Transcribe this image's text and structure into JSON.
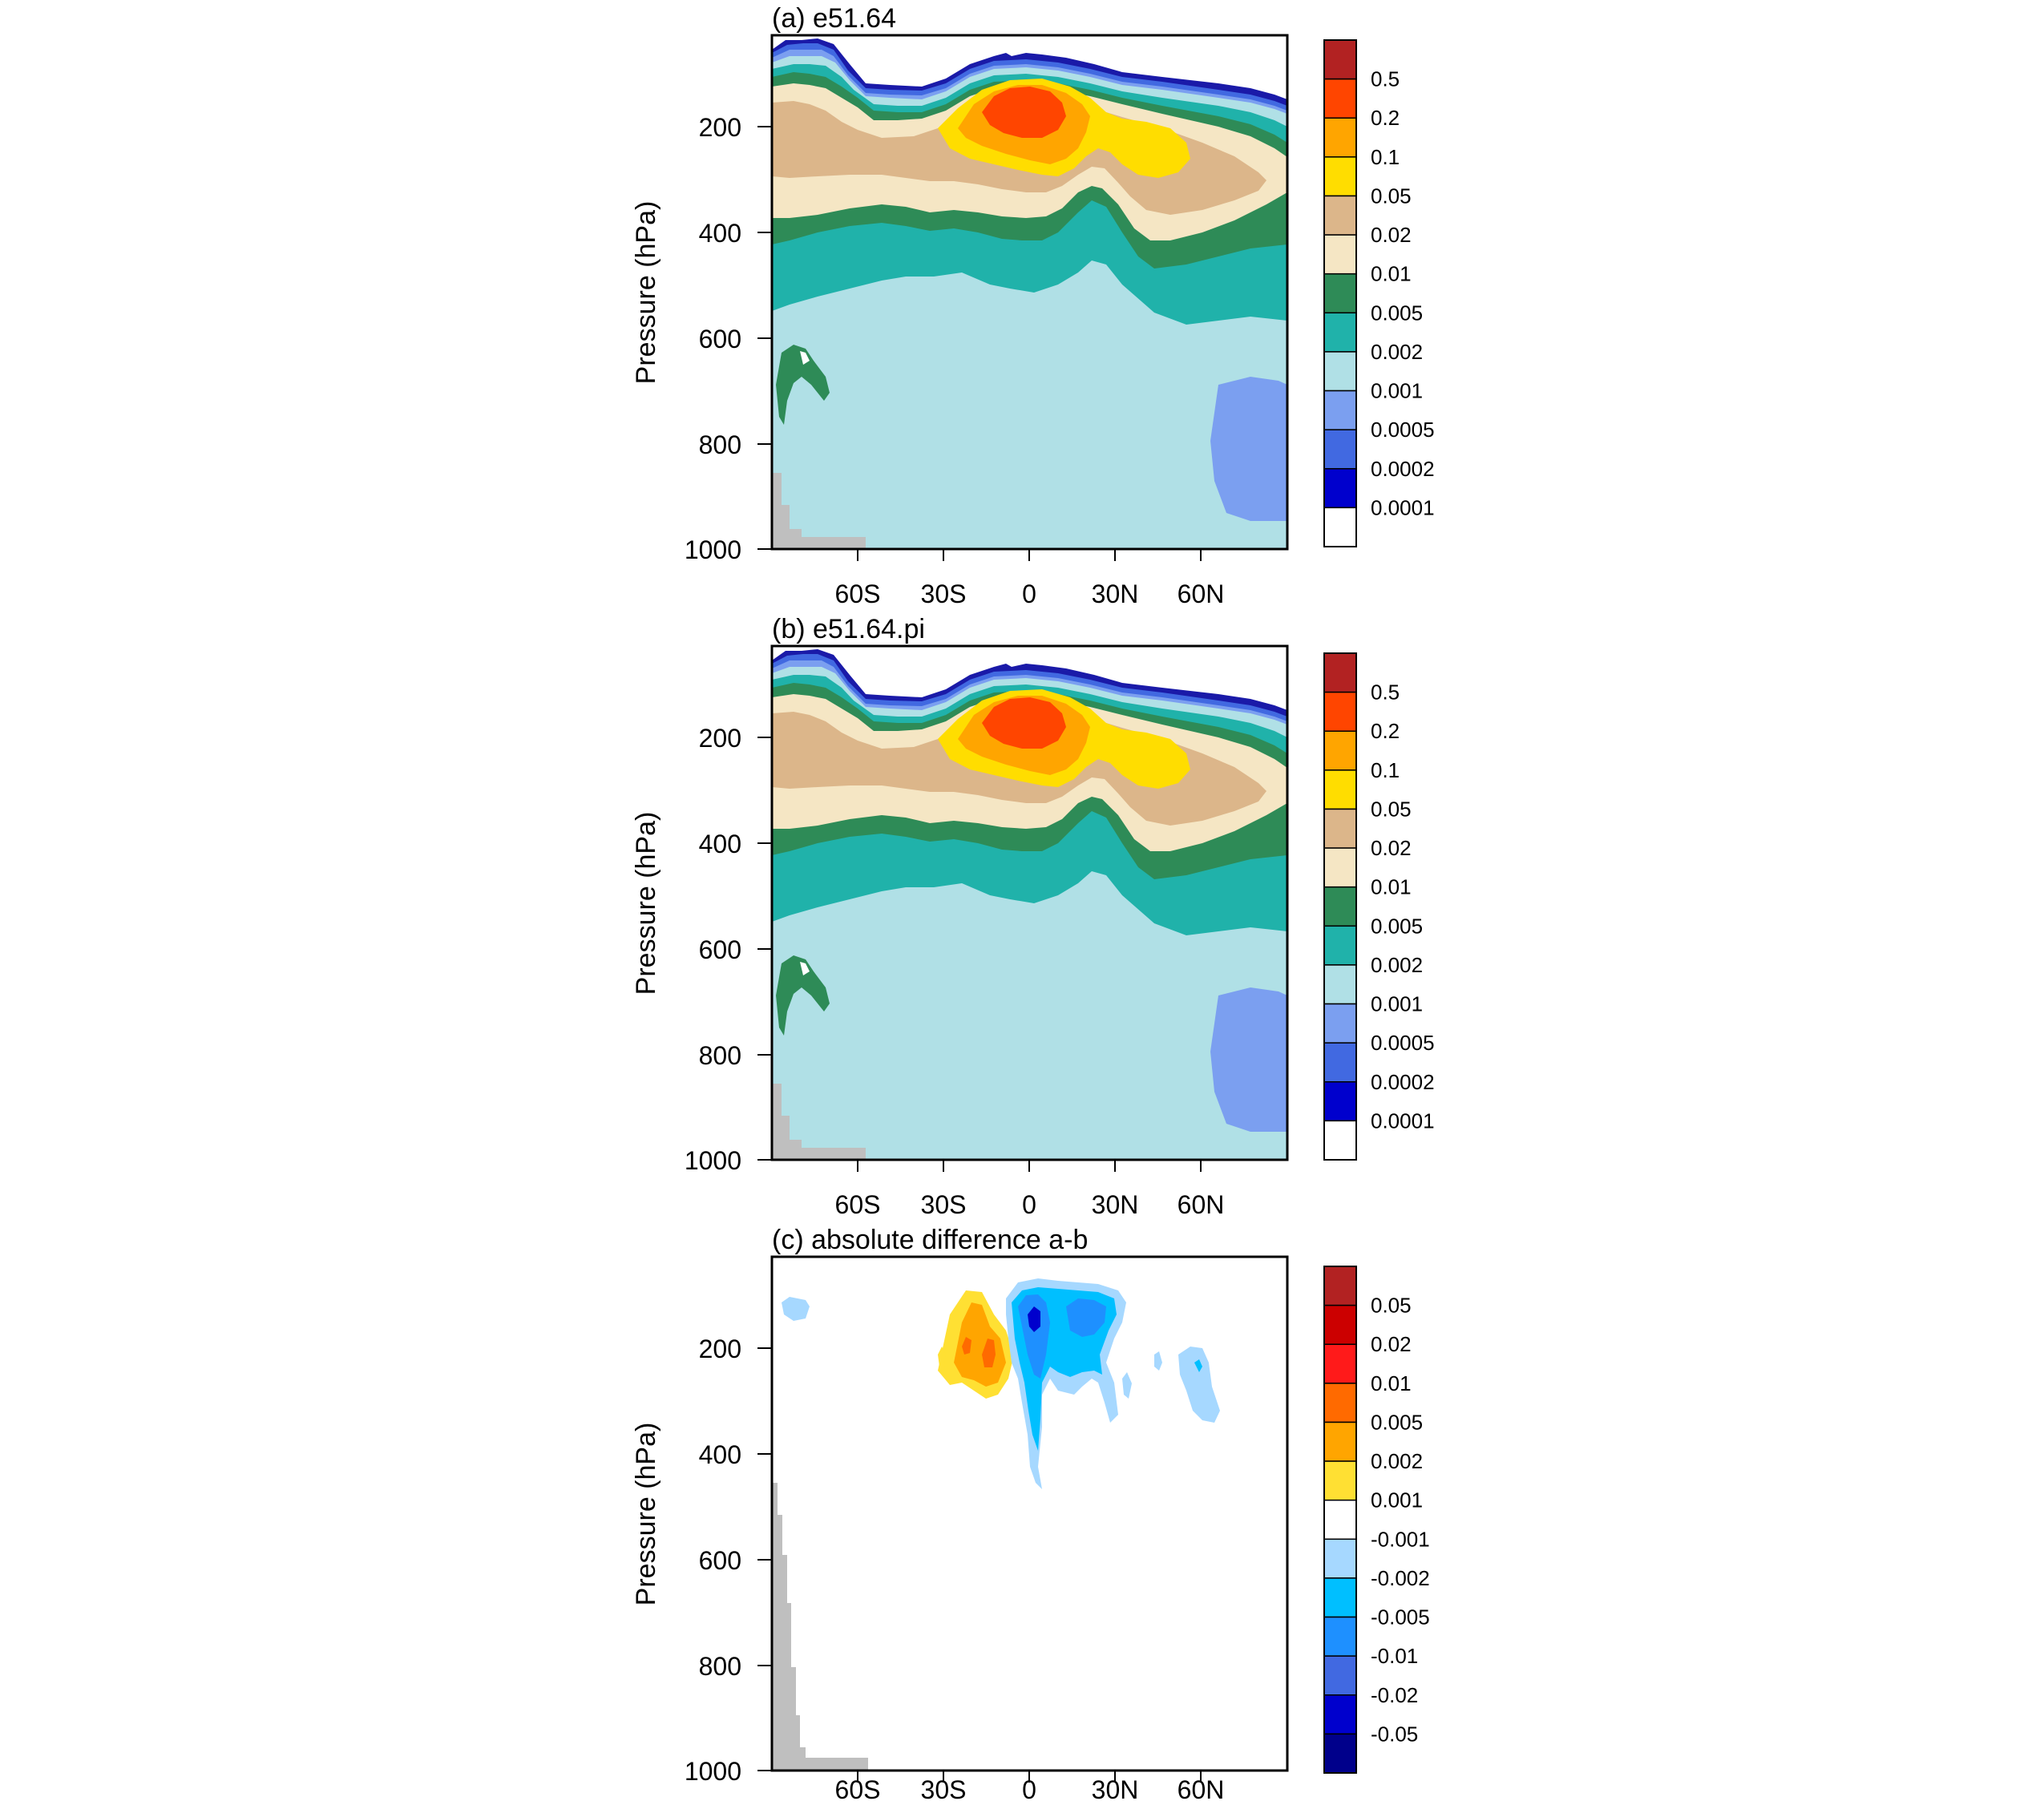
{
  "chart_data": [
    {
      "type": "contour",
      "title": "(a) e51.64",
      "ylabel": "Pressure (hPa)",
      "yticks": [
        200,
        400,
        600,
        800,
        1000
      ],
      "ylim": [
        50,
        1000
      ],
      "xticks": [
        "60S",
        "30S",
        "0",
        "30N",
        "60N"
      ],
      "xtick_values": [
        -60,
        -30,
        0,
        30,
        60
      ],
      "xlim": [
        -90,
        90
      ],
      "colorbar_levels": [
        "0.5",
        "0.2",
        "0.1",
        "0.05",
        "0.02",
        "0.01",
        "0.005",
        "0.002",
        "0.001",
        "0.0005",
        "0.0002",
        "0.0001"
      ],
      "colorbar_colors": [
        "#b22222",
        "#ff4500",
        "#ffa500",
        "#ffdd00",
        "#dcb68a",
        "#f5e6c4",
        "#2e8b57",
        "#20b2aa",
        "#b0e0e6",
        "#7b9ff0",
        "#4169e1",
        "#0000cd",
        "#ffffff"
      ]
    },
    {
      "type": "contour",
      "title": "(b) e51.64.pi",
      "ylabel": "Pressure (hPa)",
      "yticks": [
        200,
        400,
        600,
        800,
        1000
      ],
      "ylim": [
        50,
        1000
      ],
      "xticks": [
        "60S",
        "30S",
        "0",
        "30N",
        "60N"
      ],
      "xtick_values": [
        -60,
        -30,
        0,
        30,
        60
      ],
      "xlim": [
        -90,
        90
      ],
      "colorbar_levels": [
        "0.5",
        "0.2",
        "0.1",
        "0.05",
        "0.02",
        "0.01",
        "0.005",
        "0.002",
        "0.001",
        "0.0005",
        "0.0002",
        "0.0001"
      ],
      "colorbar_colors": [
        "#b22222",
        "#ff4500",
        "#ffa500",
        "#ffdd00",
        "#dcb68a",
        "#f5e6c4",
        "#2e8b57",
        "#20b2aa",
        "#b0e0e6",
        "#7b9ff0",
        "#4169e1",
        "#0000cd",
        "#ffffff"
      ]
    },
    {
      "type": "contour",
      "title": "(c) absolute difference a-b",
      "ylabel": "Pressure (hPa)",
      "yticks": [
        200,
        400,
        600,
        800,
        1000
      ],
      "ylim": [
        50,
        1000
      ],
      "xticks": [
        "60S",
        "30S",
        "0",
        "30N",
        "60N"
      ],
      "xtick_values": [
        -60,
        -30,
        0,
        30,
        60
      ],
      "xlim": [
        -90,
        90
      ],
      "colorbar_levels": [
        "0.05",
        "0.02",
        "0.01",
        "0.005",
        "0.002",
        "0.001",
        "-0.001",
        "-0.002",
        "-0.005",
        "-0.01",
        "-0.02",
        "-0.05"
      ],
      "colorbar_colors": [
        "#b22222",
        "#cc0000",
        "#ff1a1a",
        "#ff6a00",
        "#ffa500",
        "#ffe033",
        "#ffffff",
        "#a6d8ff",
        "#00bfff",
        "#1e90ff",
        "#4169e1",
        "#0000cd",
        "#00008b"
      ]
    }
  ]
}
